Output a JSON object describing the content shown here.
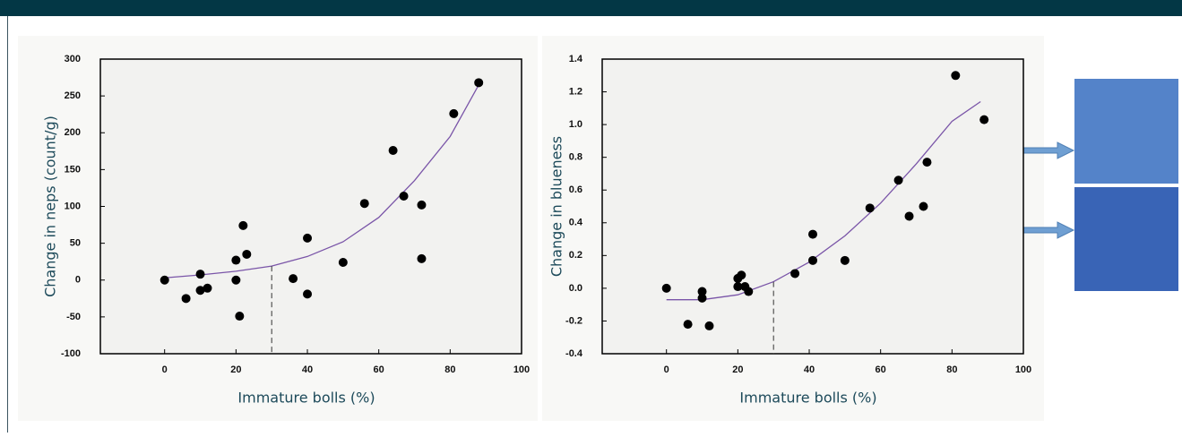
{
  "chart_data": [
    {
      "type": "scatter",
      "xlabel": "Immature bolls (%)",
      "ylabel": "Change in neps (count/g)",
      "xlim": [
        -18,
        100
      ],
      "ylim": [
        -100,
        300
      ],
      "xticks": [
        0,
        20,
        40,
        60,
        80,
        100
      ],
      "yticks": [
        -100,
        -50,
        0,
        50,
        100,
        150,
        200,
        250,
        300
      ],
      "points": {
        "color": "#000000",
        "x": [
          0,
          6,
          10,
          10,
          12,
          20,
          20,
          21,
          22,
          23,
          36,
          40,
          40,
          50,
          56,
          64,
          67,
          72,
          72,
          81,
          88
        ],
        "y": [
          0,
          -25,
          8,
          -14,
          -11,
          27,
          0,
          -49,
          74,
          35,
          2,
          -19,
          57,
          24,
          104,
          176,
          114,
          102,
          29,
          226,
          268
        ]
      },
      "curve": {
        "color": "#7a55a8",
        "x": [
          0,
          10,
          20,
          30,
          40,
          50,
          60,
          70,
          80,
          88
        ],
        "y": [
          3,
          7,
          12,
          19,
          32,
          52,
          85,
          135,
          195,
          265
        ]
      },
      "threshold_x": 30
    },
    {
      "type": "scatter",
      "xlabel": "Immature bolls (%)",
      "ylabel": "Change in blueness",
      "xlim": [
        -18,
        100
      ],
      "ylim": [
        -0.4,
        1.4
      ],
      "xticks": [
        0,
        20,
        40,
        60,
        80,
        100
      ],
      "yticks": [
        -0.4,
        -0.2,
        {
          "value": 0,
          "label": "0.0"
        },
        0.2,
        0.4,
        0.6,
        0.8,
        {
          "value": 1,
          "label": "1.0"
        },
        1.2,
        1.4
      ],
      "points": {
        "color": "#000000",
        "x": [
          0,
          6,
          10,
          10,
          12,
          20,
          21,
          20,
          22,
          23,
          36,
          41,
          41,
          50,
          57,
          65,
          68,
          72,
          73,
          81,
          89
        ],
        "y": [
          0,
          -0.22,
          -0.02,
          -0.06,
          -0.23,
          0.06,
          0.08,
          0.01,
          0.01,
          -0.02,
          0.09,
          0.17,
          0.33,
          0.17,
          0.49,
          0.66,
          0.44,
          0.5,
          0.77,
          1.3,
          1.03
        ]
      },
      "curve": {
        "color": "#7a55a8",
        "x": [
          0,
          10,
          20,
          30,
          40,
          50,
          60,
          70,
          80,
          88
        ],
        "y": [
          -0.07,
          -0.07,
          -0.04,
          0.04,
          0.16,
          0.32,
          0.52,
          0.76,
          1.02,
          1.14
        ]
      },
      "threshold_x": 30
    }
  ]
}
